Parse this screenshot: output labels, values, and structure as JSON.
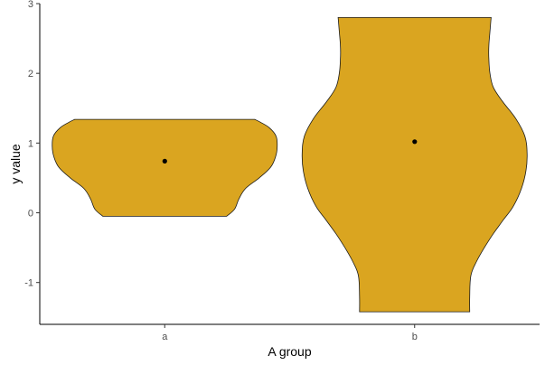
{
  "chart_data": {
    "type": "violin",
    "xlabel": "A group",
    "ylabel": "y value",
    "categories": [
      "a",
      "b"
    ],
    "ylim": [
      -1.6,
      3.0
    ],
    "yticks": [
      -1,
      0,
      1,
      2,
      3
    ],
    "y_tick_labels": [
      "-1",
      "0",
      "1",
      "2",
      "3"
    ],
    "fill_color": "#DAA520",
    "point_color": "#000000",
    "grid": false,
    "series": [
      {
        "category": "a",
        "summary_point": 0.74,
        "y_range": [
          -0.05,
          1.34
        ],
        "density_profile": [
          [
            -0.05,
            0.55
          ],
          [
            0.05,
            0.62
          ],
          [
            0.2,
            0.66
          ],
          [
            0.35,
            0.72
          ],
          [
            0.5,
            0.84
          ],
          [
            0.65,
            0.94
          ],
          [
            0.8,
            0.985
          ],
          [
            0.95,
            1.0
          ],
          [
            1.1,
            0.99
          ],
          [
            1.22,
            0.93
          ],
          [
            1.3,
            0.85
          ],
          [
            1.34,
            0.8
          ]
        ]
      },
      {
        "category": "b",
        "summary_point": 1.02,
        "y_range": [
          -1.42,
          2.8
        ],
        "density_profile": [
          [
            -1.42,
            0.49
          ],
          [
            -1.2,
            0.49
          ],
          [
            -0.9,
            0.5
          ],
          [
            -0.7,
            0.55
          ],
          [
            -0.5,
            0.62
          ],
          [
            -0.3,
            0.7
          ],
          [
            -0.1,
            0.79
          ],
          [
            0.1,
            0.88
          ],
          [
            0.35,
            0.95
          ],
          [
            0.6,
            0.99
          ],
          [
            0.85,
            1.0
          ],
          [
            1.1,
            0.98
          ],
          [
            1.35,
            0.9
          ],
          [
            1.6,
            0.78
          ],
          [
            1.8,
            0.7
          ],
          [
            2.0,
            0.67
          ],
          [
            2.2,
            0.66
          ],
          [
            2.4,
            0.66
          ],
          [
            2.6,
            0.67
          ],
          [
            2.8,
            0.68
          ]
        ]
      }
    ]
  }
}
